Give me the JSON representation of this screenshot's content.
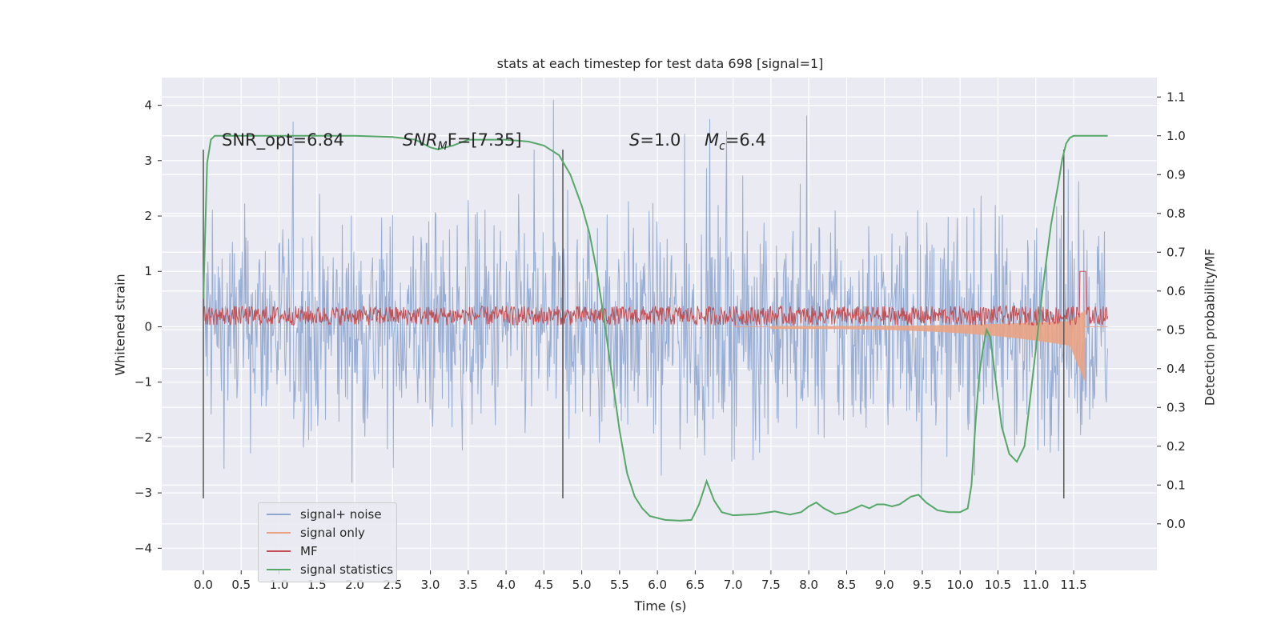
{
  "chart_data": {
    "type": "line",
    "title": "stats at each timestep for test data 698 [signal=1]",
    "xlabel": "Time (s)",
    "ylabel": "Whitened strain",
    "y2label": "Detection probability/MF",
    "xlim": [
      -0.55,
      12.6
    ],
    "ylim": [
      -4.4,
      4.5
    ],
    "y2lim": [
      -0.12,
      1.15
    ],
    "x_ticks": [
      "0.0",
      "0.5",
      "1.0",
      "1.5",
      "2.0",
      "2.5",
      "3.0",
      "3.5",
      "4.0",
      "4.5",
      "5.0",
      "5.5",
      "6.0",
      "6.5",
      "7.0",
      "7.5",
      "8.0",
      "8.5",
      "9.0",
      "9.5",
      "10.0",
      "10.5",
      "11.0",
      "11.5"
    ],
    "y_ticks": [
      "4",
      "3",
      "2",
      "1",
      "0",
      "−1",
      "−2",
      "−3",
      "−4"
    ],
    "y2_ticks": [
      "1.1",
      "1.0",
      "0.9",
      "0.8",
      "0.7",
      "0.6",
      "0.5",
      "0.4",
      "0.3",
      "0.2",
      "0.1",
      "0.0"
    ],
    "grid": true,
    "legend_position": "lower-left",
    "vlines": [
      0.0,
      4.75,
      11.37
    ],
    "annotations": [
      {
        "text": "SNR_opt=6.84"
      },
      {
        "prefix": "SNR",
        "sub": "M",
        "suffix": "F=[7.35]"
      },
      {
        "prefix": "S",
        "suffix": "=1.0"
      },
      {
        "prefix": "M",
        "sub": "c",
        "suffix": "=6.4"
      }
    ],
    "series": [
      {
        "name": "signal+ noise",
        "color": "#8fa6cf",
        "description": "whitened noise band, amplitude about ±2.5 with spikes to ±4"
      },
      {
        "name": "signal only",
        "color": "#e9a384",
        "description": "chirp starting near 7.5 s, growing to about -1.0 at 11.65 s"
      },
      {
        "name": "MF",
        "color": "#c44e52",
        "description": "matched-filter output around 0.1–0.4 with a peak of 1.0 at 11.62 s"
      },
      {
        "name": "signal statistics",
        "color": "#55a868",
        "x": [
          0.0,
          0.05,
          0.1,
          0.15,
          0.25,
          0.5,
          1.0,
          2.0,
          2.5,
          2.8,
          3.0,
          3.1,
          3.3,
          3.5,
          4.0,
          4.3,
          4.5,
          4.7,
          4.85,
          5.0,
          5.1,
          5.2,
          5.3,
          5.4,
          5.5,
          5.6,
          5.7,
          5.8,
          5.9,
          6.1,
          6.3,
          6.45,
          6.55,
          6.65,
          6.75,
          6.85,
          7.0,
          7.3,
          7.55,
          7.75,
          7.9,
          8.0,
          8.1,
          8.2,
          8.35,
          8.5,
          8.7,
          8.8,
          8.9,
          9.0,
          9.1,
          9.2,
          9.35,
          9.45,
          9.55,
          9.7,
          9.85,
          10.0,
          10.1,
          10.15,
          10.2,
          10.25,
          10.3,
          10.35,
          10.4,
          10.45,
          10.55,
          10.65,
          10.75,
          10.85,
          10.9,
          11.0,
          11.1,
          11.2,
          11.3,
          11.35,
          11.4,
          11.45,
          11.5,
          11.55,
          11.65,
          11.8,
          11.95
        ],
        "y": [
          0.58,
          0.93,
          0.99,
          1.0,
          1.0,
          1.0,
          1.0,
          1.0,
          0.997,
          0.99,
          0.97,
          0.965,
          0.975,
          0.99,
          0.99,
          0.985,
          0.975,
          0.95,
          0.9,
          0.82,
          0.75,
          0.65,
          0.52,
          0.38,
          0.24,
          0.13,
          0.07,
          0.04,
          0.02,
          0.01,
          0.008,
          0.01,
          0.05,
          0.11,
          0.06,
          0.03,
          0.022,
          0.025,
          0.032,
          0.024,
          0.03,
          0.045,
          0.055,
          0.04,
          0.025,
          0.03,
          0.048,
          0.04,
          0.05,
          0.05,
          0.045,
          0.05,
          0.07,
          0.075,
          0.055,
          0.035,
          0.03,
          0.03,
          0.04,
          0.1,
          0.25,
          0.38,
          0.45,
          0.5,
          0.48,
          0.4,
          0.25,
          0.18,
          0.16,
          0.2,
          0.28,
          0.45,
          0.62,
          0.77,
          0.88,
          0.94,
          0.98,
          0.995,
          1.0,
          1.0,
          1.0,
          1.0,
          1.0
        ]
      }
    ]
  }
}
